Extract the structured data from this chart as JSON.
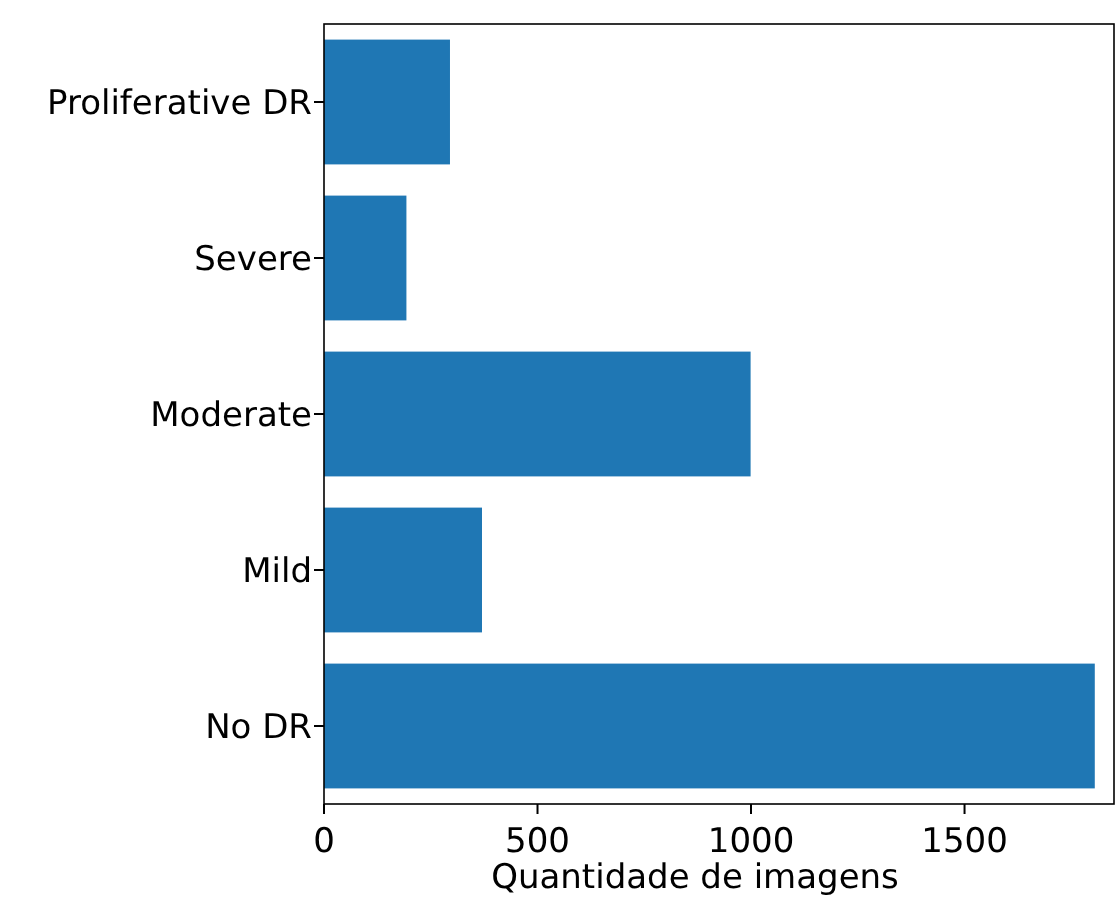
{
  "chart_data": {
    "type": "bar",
    "orientation": "horizontal",
    "xlabel": "Quantidade de imagens",
    "categories": [
      "Proliferative DR",
      "Severe",
      "Moderate",
      "Mild",
      "No DR"
    ],
    "values": [
      295,
      193,
      999,
      370,
      1805
    ],
    "color": "#1f77b4",
    "xlim": [
      0,
      1850
    ],
    "xticks": [
      0,
      500,
      1000,
      1500
    ]
  }
}
